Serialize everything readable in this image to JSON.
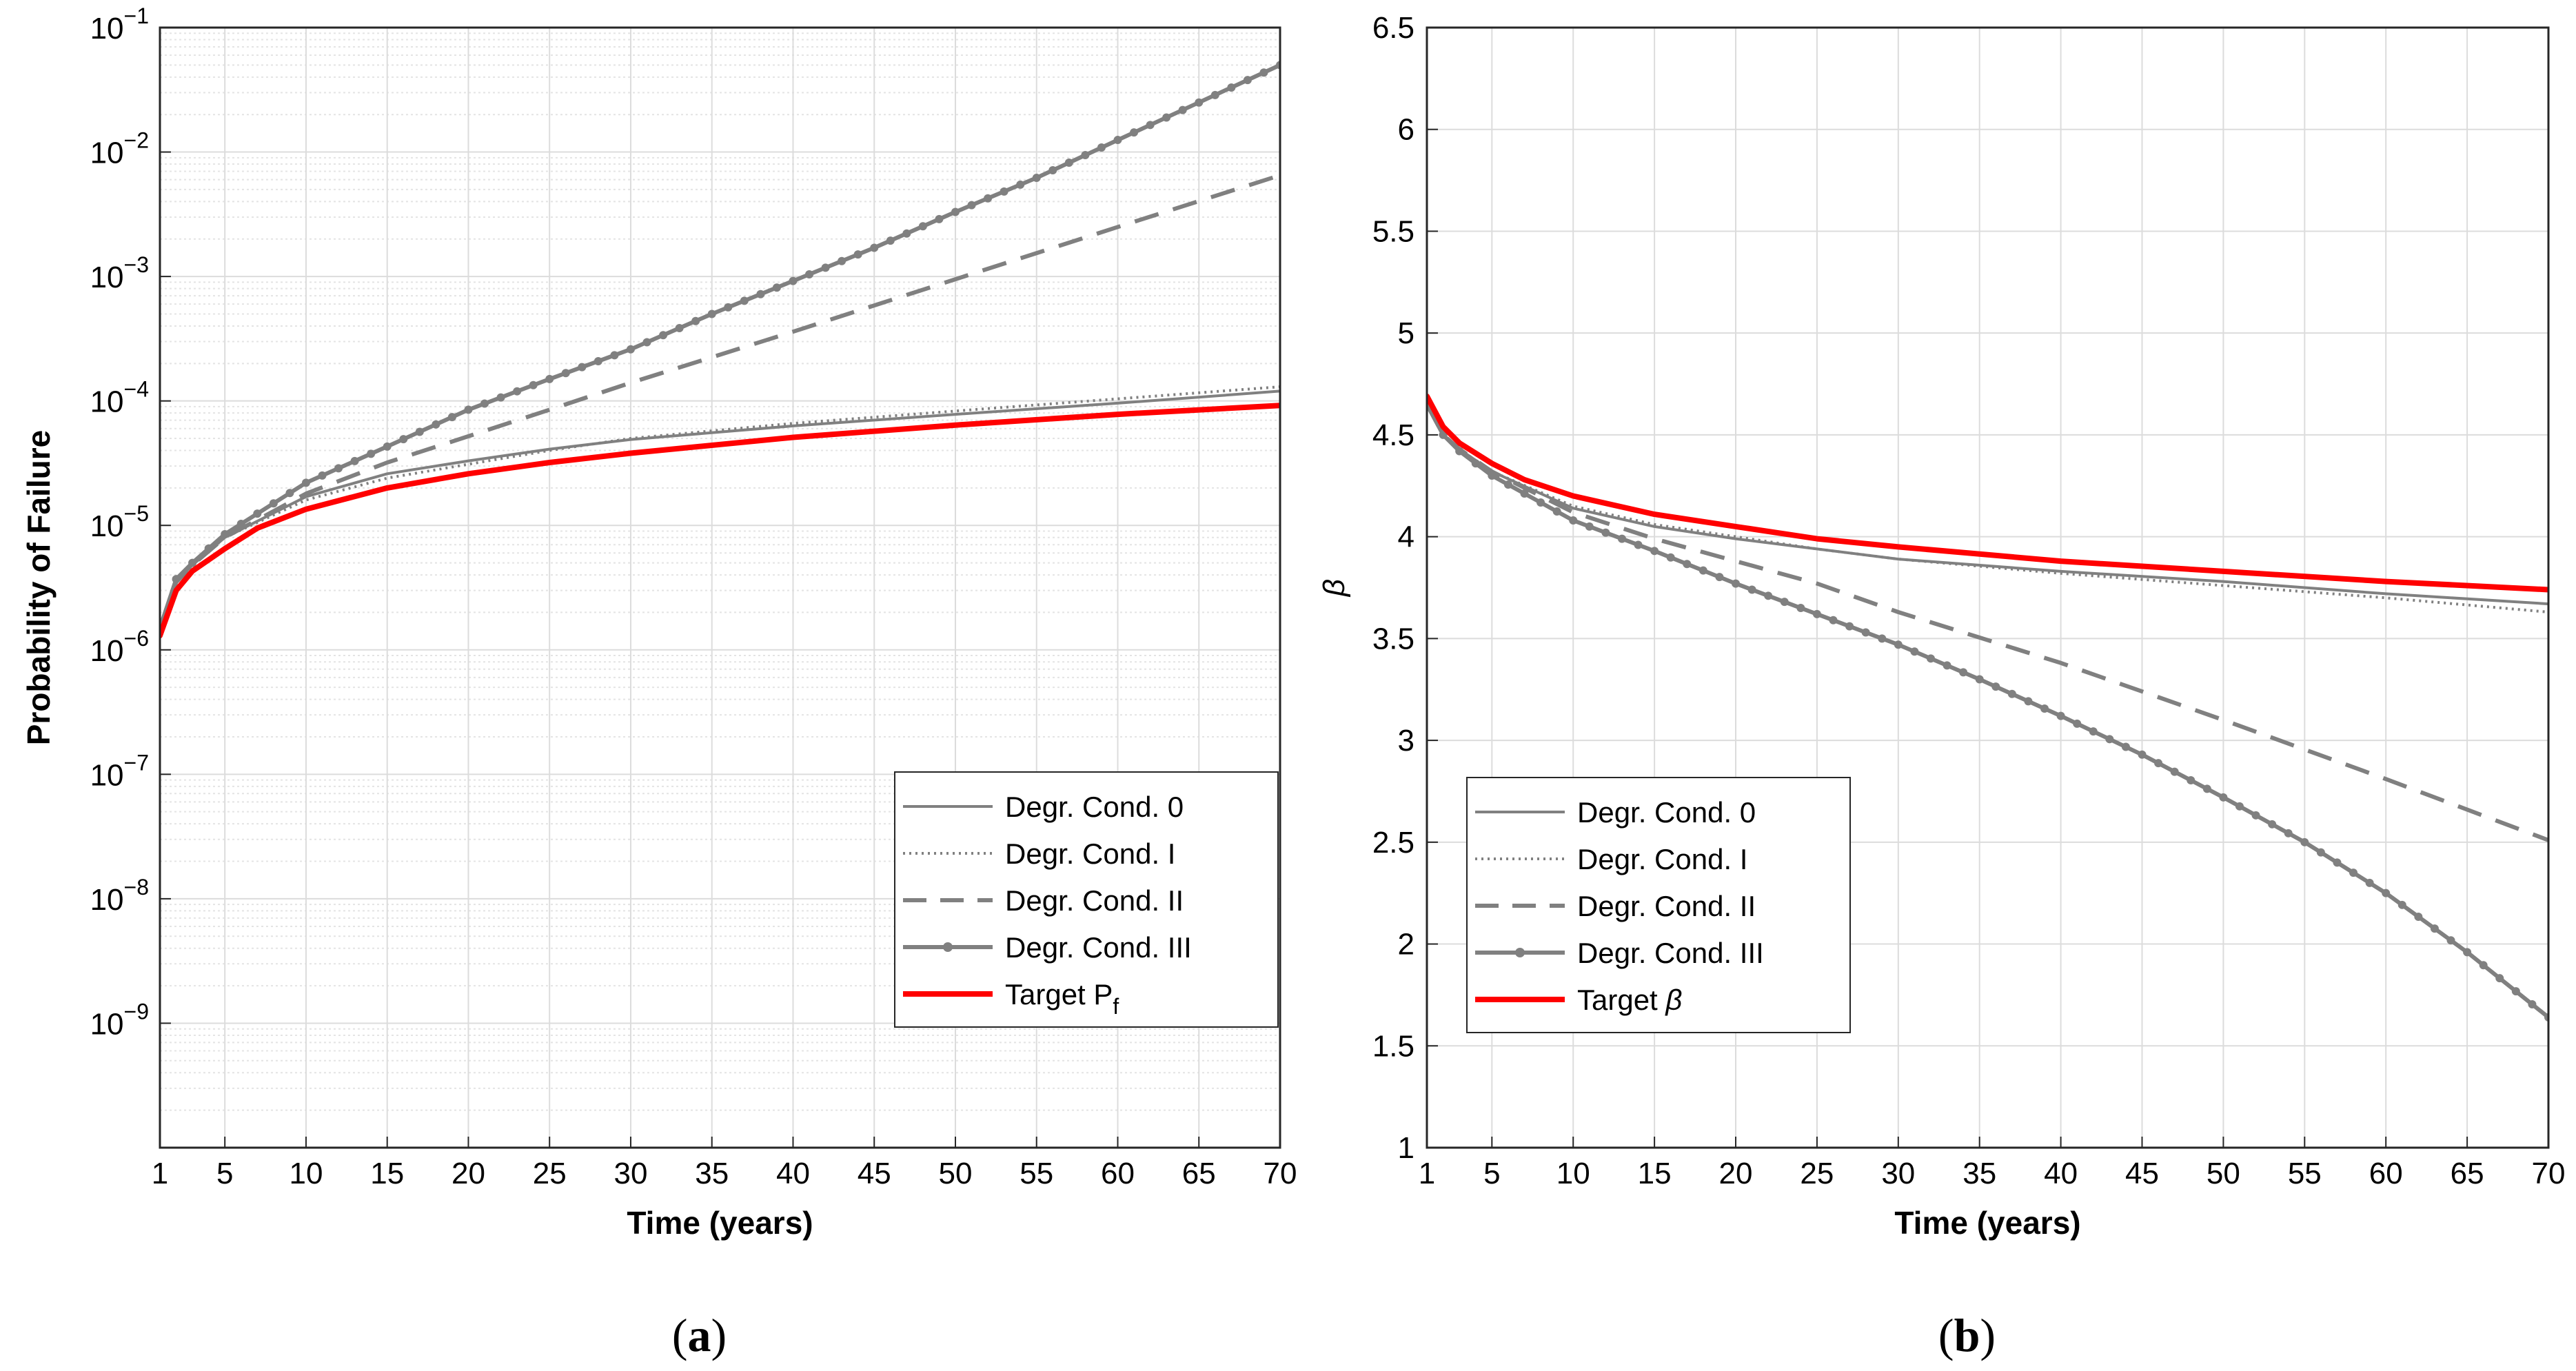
{
  "chart_data": [
    {
      "type": "line",
      "panel": "a",
      "caption": {
        "open": "(",
        "letter": "a",
        "close": ")"
      },
      "xlabel": "Time (years)",
      "ylabel": "Probability of Failure",
      "yscale": "log",
      "xlim": [
        1,
        70
      ],
      "ylim": [
        1e-10,
        0.1
      ],
      "xticks": [
        1,
        5,
        10,
        15,
        20,
        25,
        30,
        35,
        40,
        45,
        50,
        55,
        60,
        65,
        70
      ],
      "yticks": [
        {
          "base": "10",
          "exp": "−9",
          "value": 1e-09
        },
        {
          "base": "10",
          "exp": "−8",
          "value": 1e-08
        },
        {
          "base": "10",
          "exp": "−7",
          "value": 1e-07
        },
        {
          "base": "10",
          "exp": "−6",
          "value": 1e-06
        },
        {
          "base": "10",
          "exp": "−5",
          "value": 1e-05
        },
        {
          "base": "10",
          "exp": "−4",
          "value": 0.0001
        },
        {
          "base": "10",
          "exp": "−3",
          "value": 0.001
        },
        {
          "base": "10",
          "exp": "−2",
          "value": 0.01
        },
        {
          "base": "10",
          "exp": "−1",
          "value": 0.1
        }
      ],
      "grid": true,
      "legend": "lower-right",
      "series": [
        {
          "name": "Degr. Cond. 0",
          "style": "solid",
          "color": "#808080",
          "x": [
            1,
            2,
            3,
            5,
            10,
            15,
            20,
            25,
            30,
            40,
            50,
            60,
            70
          ],
          "y": [
            1.5e-06,
            3.5e-06,
            4.8e-06,
            8e-06,
            1.7e-05,
            2.6e-05,
            3.3e-05,
            4.1e-05,
            4.9e-05,
            6.3e-05,
            7.8e-05,
            9.6e-05,
            0.00012
          ]
        },
        {
          "name": "Degr. Cond. I",
          "style": "dotted",
          "color": "#808080",
          "x": [
            1,
            2,
            3,
            5,
            10,
            15,
            20,
            25,
            30,
            40,
            50,
            60,
            70
          ],
          "y": [
            1.5e-06,
            3.5e-06,
            4.8e-06,
            8e-06,
            1.6e-05,
            2.4e-05,
            3.1e-05,
            4e-05,
            5e-05,
            6.6e-05,
            8.3e-05,
            0.000104,
            0.00013
          ]
        },
        {
          "name": "Degr. Cond. II",
          "style": "dashed",
          "color": "#808080",
          "x": [
            1,
            2,
            3,
            5,
            10,
            15,
            20,
            25,
            30,
            40,
            50,
            60,
            70
          ],
          "y": [
            1.5e-06,
            3.5e-06,
            4.8e-06,
            8e-06,
            1.8e-05,
            3.2e-05,
            5.2e-05,
            8.5e-05,
            0.00014,
            0.00036,
            0.00095,
            0.0025,
            0.0065
          ]
        },
        {
          "name": "Degr. Cond. III",
          "style": "markers",
          "color": "#808080",
          "x": [
            1,
            2,
            3,
            5,
            10,
            15,
            20,
            25,
            30,
            35,
            40,
            45,
            50,
            55,
            60,
            65,
            70
          ],
          "y": [
            1.5e-06,
            3.7e-06,
            5e-06,
            8.5e-06,
            2.2e-05,
            4.3e-05,
            8.5e-05,
            0.00015,
            0.00026,
            0.0005,
            0.00092,
            0.0017,
            0.0033,
            0.0062,
            0.0125,
            0.025,
            0.05
          ]
        },
        {
          "name": "Target P",
          "sub": "f",
          "style": "solid-thick",
          "color": "#ff0000",
          "x": [
            1,
            2,
            3,
            5,
            7,
            10,
            15,
            20,
            25,
            30,
            40,
            50,
            60,
            70
          ],
          "y": [
            1.3e-06,
            3e-06,
            4.3e-06,
            6.5e-06,
            9.5e-06,
            1.35e-05,
            2e-05,
            2.6e-05,
            3.2e-05,
            3.8e-05,
            5.1e-05,
            6.4e-05,
            7.8e-05,
            9.2e-05
          ]
        }
      ]
    },
    {
      "type": "line",
      "panel": "b",
      "caption": {
        "open": "(",
        "letter": "b",
        "close": ")"
      },
      "xlabel": "Time (years)",
      "ylabel": "β",
      "yscale": "linear",
      "xlim": [
        1,
        70
      ],
      "ylim": [
        1,
        6.5
      ],
      "xticks": [
        1,
        5,
        10,
        15,
        20,
        25,
        30,
        35,
        40,
        45,
        50,
        55,
        60,
        65,
        70
      ],
      "yticks": [
        "1",
        "1.5",
        "2",
        "2.5",
        "3",
        "3.5",
        "4",
        "4.5",
        "5",
        "5.5",
        "6",
        "6.5"
      ],
      "grid": true,
      "legend": "lower-left",
      "series": [
        {
          "name": "Degr. Cond. 0",
          "style": "solid",
          "color": "#808080",
          "x": [
            1,
            2,
            3,
            5,
            10,
            15,
            20,
            25,
            30,
            40,
            50,
            60,
            70
          ],
          "y": [
            4.65,
            4.5,
            4.43,
            4.32,
            4.14,
            4.05,
            3.99,
            3.94,
            3.89,
            3.83,
            3.78,
            3.72,
            3.67
          ]
        },
        {
          "name": "Degr. Cond. I",
          "style": "dotted",
          "color": "#808080",
          "x": [
            1,
            2,
            3,
            5,
            10,
            15,
            20,
            25,
            30,
            40,
            50,
            60,
            70
          ],
          "y": [
            4.65,
            4.5,
            4.43,
            4.32,
            4.15,
            4.06,
            4.0,
            3.94,
            3.89,
            3.82,
            3.76,
            3.7,
            3.63
          ]
        },
        {
          "name": "Degr. Cond. II",
          "style": "dashed",
          "color": "#808080",
          "x": [
            1,
            2,
            3,
            5,
            10,
            15,
            20,
            25,
            30,
            40,
            50,
            60,
            70
          ],
          "y": [
            4.65,
            4.5,
            4.43,
            4.32,
            4.12,
            3.99,
            3.88,
            3.77,
            3.63,
            3.38,
            3.1,
            2.81,
            2.51
          ]
        },
        {
          "name": "Degr. Cond. III",
          "style": "markers",
          "color": "#808080",
          "x": [
            1,
            2,
            3,
            5,
            10,
            15,
            20,
            25,
            30,
            35,
            40,
            45,
            50,
            55,
            60,
            65,
            70
          ],
          "y": [
            4.65,
            4.5,
            4.42,
            4.3,
            4.08,
            3.93,
            3.77,
            3.62,
            3.47,
            3.3,
            3.12,
            2.93,
            2.72,
            2.5,
            2.25,
            1.96,
            1.64
          ]
        },
        {
          "name": "Target ",
          "sub": "",
          "greek": "β",
          "style": "solid-thick",
          "color": "#ff0000",
          "x": [
            1,
            2,
            3,
            5,
            7,
            10,
            15,
            20,
            25,
            30,
            40,
            50,
            60,
            70
          ],
          "y": [
            4.69,
            4.54,
            4.46,
            4.36,
            4.28,
            4.2,
            4.11,
            4.05,
            3.99,
            3.95,
            3.88,
            3.83,
            3.78,
            3.74
          ]
        }
      ]
    }
  ]
}
